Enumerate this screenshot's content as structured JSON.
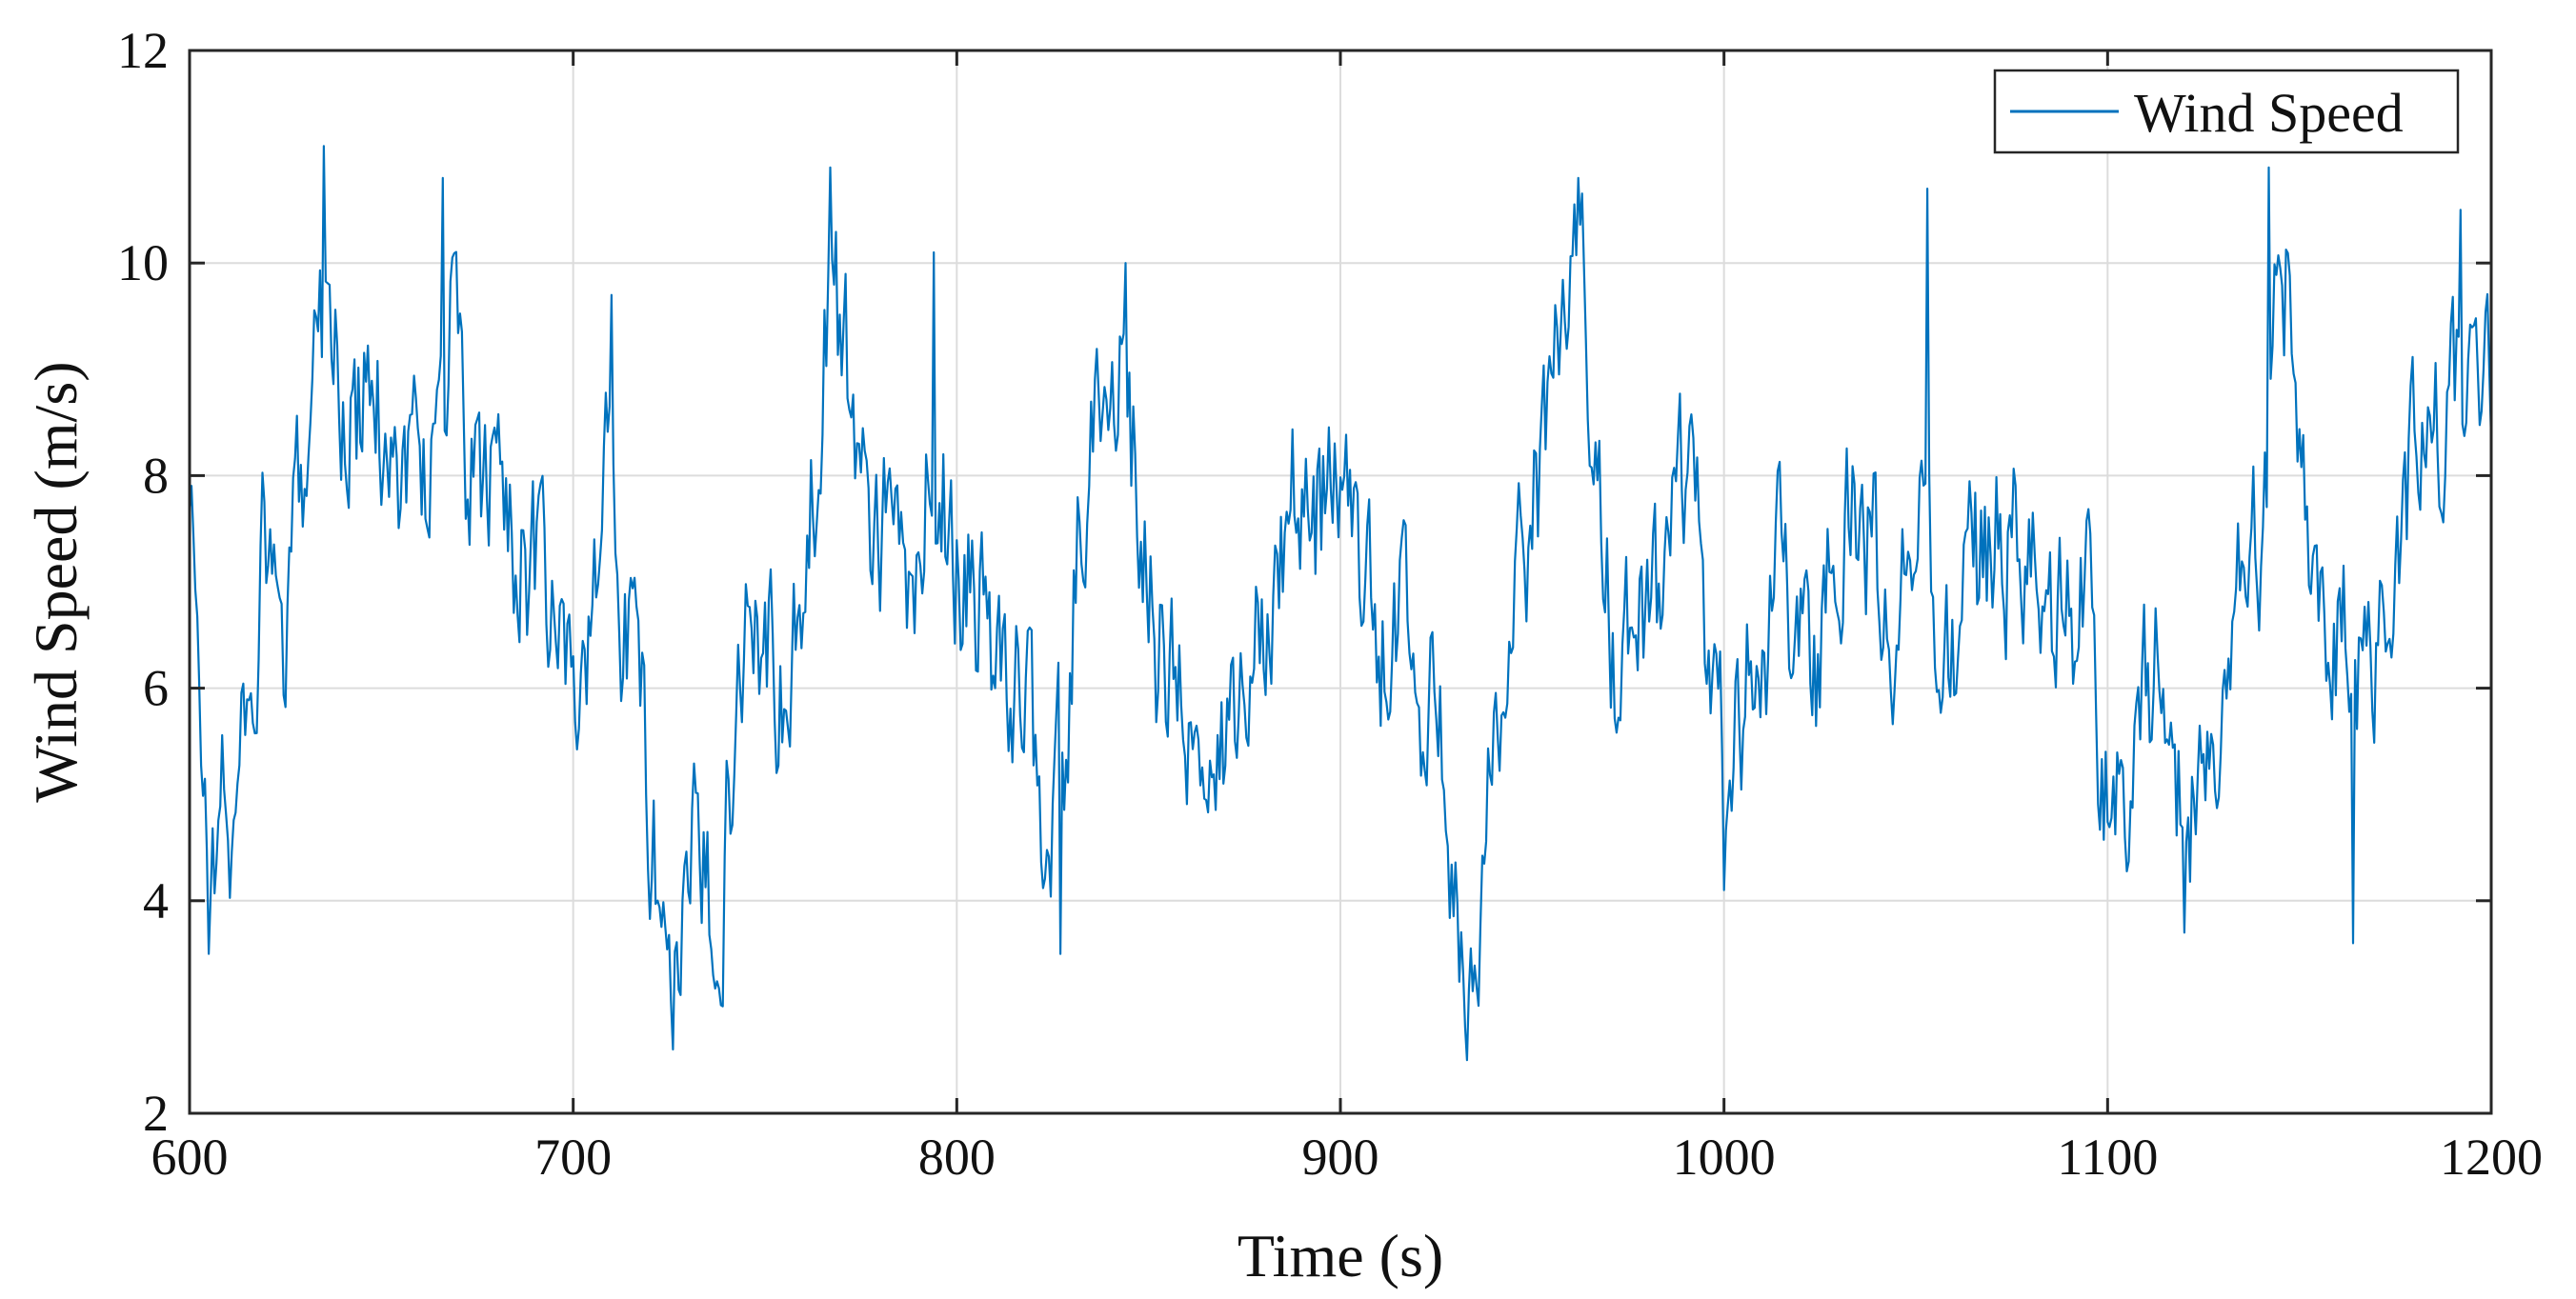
{
  "chart_data": {
    "type": "line",
    "title": "",
    "xlabel": "Time (s)",
    "ylabel": "Wind Speed (m/s)",
    "xlim": [
      600,
      1200
    ],
    "ylim": [
      2,
      12
    ],
    "xticks": [
      600,
      700,
      800,
      900,
      1000,
      1100,
      1200
    ],
    "yticks": [
      2,
      4,
      6,
      8,
      10,
      12
    ],
    "grid": true,
    "legend_position": "top-right",
    "series": [
      {
        "name": "Wind Speed",
        "color": "#0072BD",
        "sample_step_s": 0.5,
        "trend": {
          "x": [
            600,
            603,
            606,
            609,
            612,
            616,
            620,
            625,
            630,
            634,
            637,
            641,
            646,
            651,
            655,
            660,
            664,
            668,
            672,
            676,
            681,
            686,
            690,
            694,
            698,
            701,
            705,
            709,
            713,
            717,
            721,
            724,
            727,
            731,
            735,
            739,
            743,
            747,
            751,
            755,
            760,
            764,
            767,
            771,
            775,
            779,
            784,
            789,
            794,
            799,
            803,
            808,
            813,
            817,
            821,
            825,
            828,
            832,
            836,
            840,
            844,
            848,
            852,
            856,
            860,
            864,
            867,
            871,
            875,
            879,
            884,
            888,
            892,
            897,
            901,
            905,
            909,
            913,
            917,
            921,
            925,
            929,
            933,
            937,
            941,
            946,
            951,
            955,
            959,
            963,
            967,
            971,
            975,
            980,
            984,
            988,
            992,
            997,
            1001,
            1005,
            1010,
            1015,
            1020,
            1025,
            1030,
            1035,
            1040,
            1045,
            1050,
            1055,
            1060,
            1065,
            1070,
            1075,
            1080,
            1085,
            1090,
            1094,
            1099,
            1104,
            1108,
            1113,
            1117,
            1121,
            1125,
            1130,
            1135,
            1140,
            1143,
            1147,
            1151,
            1155,
            1159,
            1163,
            1167,
            1171,
            1175,
            1180,
            1185,
            1190,
            1195,
            1200
          ],
          "y": [
            7.6,
            5.6,
            4.3,
            5.0,
            4.6,
            6.3,
            7.3,
            6.0,
            8.4,
            9.8,
            9.6,
            8.3,
            8.7,
            8.5,
            8.2,
            8.0,
            8.4,
            9.4,
            8.2,
            7.7,
            8.1,
            7.3,
            7.0,
            6.4,
            6.3,
            6.0,
            6.5,
            8.3,
            6.8,
            6.0,
            4.6,
            4.0,
            3.5,
            4.4,
            4.0,
            4.4,
            6.2,
            6.8,
            6.6,
            5.6,
            6.7,
            8.6,
            10.1,
            9.0,
            8.3,
            7.6,
            7.3,
            6.8,
            8.3,
            7.3,
            7.1,
            6.4,
            5.8,
            6.3,
            5.1,
            4.6,
            5.4,
            7.5,
            8.8,
            8.6,
            9.0,
            7.6,
            6.4,
            6.0,
            5.8,
            4.9,
            4.4,
            5.6,
            6.1,
            6.8,
            7.5,
            8.0,
            7.3,
            7.9,
            8.1,
            7.2,
            6.4,
            6.3,
            6.6,
            6.1,
            5.6,
            4.6,
            3.6,
            4.5,
            5.7,
            6.6,
            7.8,
            9.0,
            9.5,
            9.7,
            8.4,
            6.4,
            6.3,
            6.5,
            6.9,
            7.8,
            7.5,
            6.1,
            5.0,
            5.9,
            6.3,
            7.1,
            6.7,
            6.2,
            7.4,
            7.8,
            7.1,
            6.4,
            8.2,
            6.8,
            6.2,
            6.9,
            7.5,
            7.3,
            7.0,
            6.2,
            6.6,
            7.0,
            5.2,
            4.9,
            5.6,
            6.4,
            5.1,
            4.7,
            5.3,
            6.1,
            6.8,
            7.4,
            9.2,
            9.8,
            8.4,
            6.4,
            6.6,
            6.4,
            5.9,
            6.6,
            7.5,
            8.2,
            8.5,
            8.7,
            8.2,
            8.7
          ]
        },
        "peaks": {
          "x": [
            605,
            635,
            666,
            710,
            726,
            767,
            794,
            827,
            844,
            933,
            962,
            1000,
            1053,
            1120,
            1142,
            1164,
            1192
          ],
          "y": [
            3.5,
            11.1,
            10.8,
            9.7,
            2.6,
            10.9,
            10.1,
            3.5,
            10.0,
            2.5,
            10.8,
            4.1,
            10.7,
            3.7,
            10.9,
            3.6,
            10.5
          ]
        },
        "fluctuation_amplitude": 0.75,
        "fluctuation_seed": 20240611
      }
    ]
  }
}
